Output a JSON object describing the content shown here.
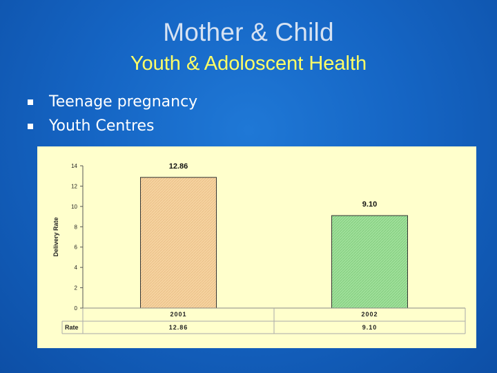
{
  "slide": {
    "title": "Mother & Child",
    "subtitle": "Youth & Adoloscent Health",
    "bullets": [
      "Teenage pregnancy",
      "Youth Centres"
    ]
  },
  "colors": {
    "background": "#1565c4",
    "title": "#d6e2f2",
    "subtitle": "#ffff66",
    "chart_panel": "#ffffcc",
    "bar_2001": "#f6d3a0",
    "bar_2002": "#9fe09a"
  },
  "chart_data": {
    "type": "bar",
    "categories": [
      "2001",
      "2002"
    ],
    "series": [
      {
        "name": "Rate",
        "values": [
          12.86,
          9.1
        ],
        "labels": [
          "12.86",
          "9.10"
        ]
      }
    ],
    "ylabel": "Delivery Rate",
    "ylim": [
      0,
      14
    ],
    "yticks": [
      0,
      2,
      4,
      6,
      8,
      10,
      12,
      14
    ],
    "grid": false,
    "legend": "none",
    "data_table": {
      "row_label": "Rate",
      "cells": [
        "12.86",
        "9.10"
      ]
    }
  }
}
